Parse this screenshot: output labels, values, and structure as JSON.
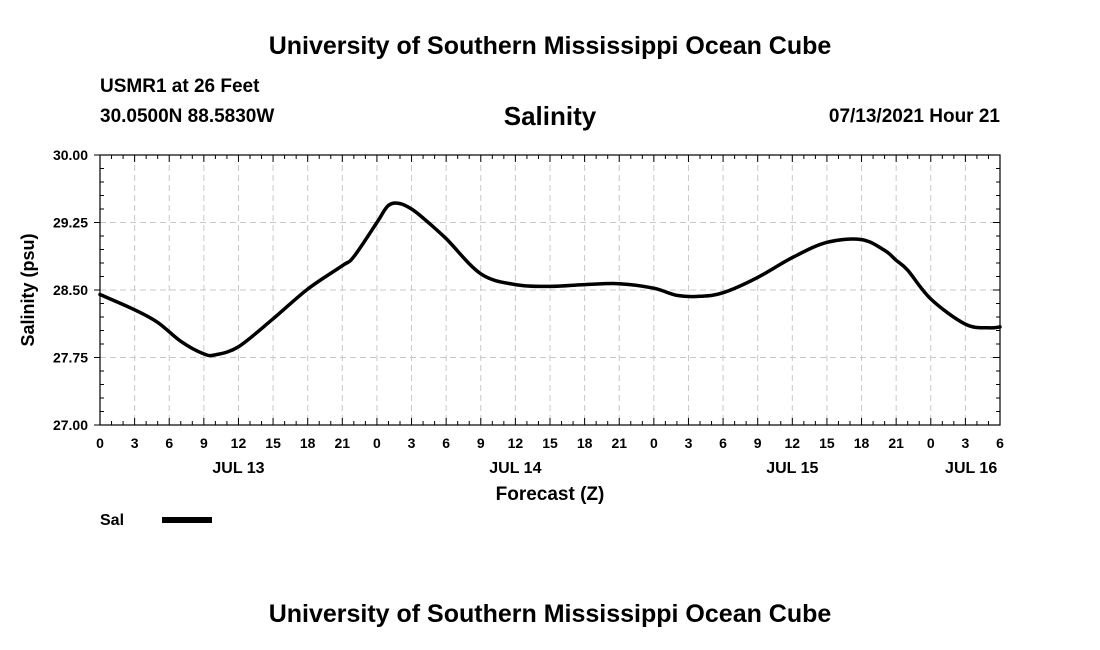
{
  "header": {
    "title": "University of Southern Mississippi Ocean Cube",
    "station": "USMR1 at 26 Feet",
    "coords": "30.0500N  88.5830W",
    "timestamp": "07/13/2021 Hour 21"
  },
  "footer": {
    "title": "University of Southern Mississippi Ocean Cube"
  },
  "chart_data": {
    "type": "line",
    "title": "Salinity",
    "xlabel": "Forecast (Z)",
    "ylabel": "Salinity (psu)",
    "ylim": [
      27.0,
      30.0
    ],
    "yticks": [
      "27.00",
      "27.75",
      "28.50",
      "29.25",
      "30.00"
    ],
    "xlim_hours": [
      0,
      78
    ],
    "xticks_hours": [
      0,
      3,
      6,
      9,
      12,
      15,
      18,
      21,
      24,
      27,
      30,
      33,
      36,
      39,
      42,
      45,
      48,
      51,
      54,
      57,
      60,
      63,
      66,
      69,
      72,
      75,
      78
    ],
    "xtick_labels": [
      "0",
      "3",
      "6",
      "9",
      "12",
      "15",
      "18",
      "21",
      "0",
      "3",
      "6",
      "9",
      "12",
      "15",
      "18",
      "21",
      "0",
      "3",
      "6",
      "9",
      "12",
      "15",
      "18",
      "21",
      "0",
      "3",
      "6"
    ],
    "date_labels": [
      {
        "label": "JUL 13",
        "hour": 12
      },
      {
        "label": "JUL 14",
        "hour": 36
      },
      {
        "label": "JUL 15",
        "hour": 60
      },
      {
        "label": "JUL 16",
        "hour": 75.5
      }
    ],
    "grid": true,
    "legend": {
      "placement": "bottom-left",
      "entries": [
        {
          "name": "Sal"
        }
      ]
    },
    "series": [
      {
        "name": "Sal",
        "x": [
          0,
          3,
          5,
          7,
          9,
          10,
          12,
          15,
          18,
          21,
          22,
          24,
          25,
          26,
          27,
          28,
          30,
          33,
          36,
          39,
          42,
          45,
          48,
          50,
          52,
          54,
          57,
          60,
          63,
          66,
          68,
          69,
          70,
          72,
          75,
          77,
          78
        ],
        "values": [
          28.45,
          28.28,
          28.14,
          27.93,
          27.79,
          27.78,
          27.87,
          28.18,
          28.51,
          28.77,
          28.87,
          29.25,
          29.44,
          29.46,
          29.4,
          29.3,
          29.07,
          28.68,
          28.56,
          28.54,
          28.56,
          28.57,
          28.52,
          28.44,
          28.43,
          28.47,
          28.64,
          28.86,
          29.03,
          29.06,
          28.94,
          28.83,
          28.72,
          28.4,
          28.12,
          28.08,
          28.09
        ]
      }
    ]
  },
  "colors": {
    "line": "#000000",
    "grid": "#c8c8c8",
    "background": "#ffffff"
  }
}
